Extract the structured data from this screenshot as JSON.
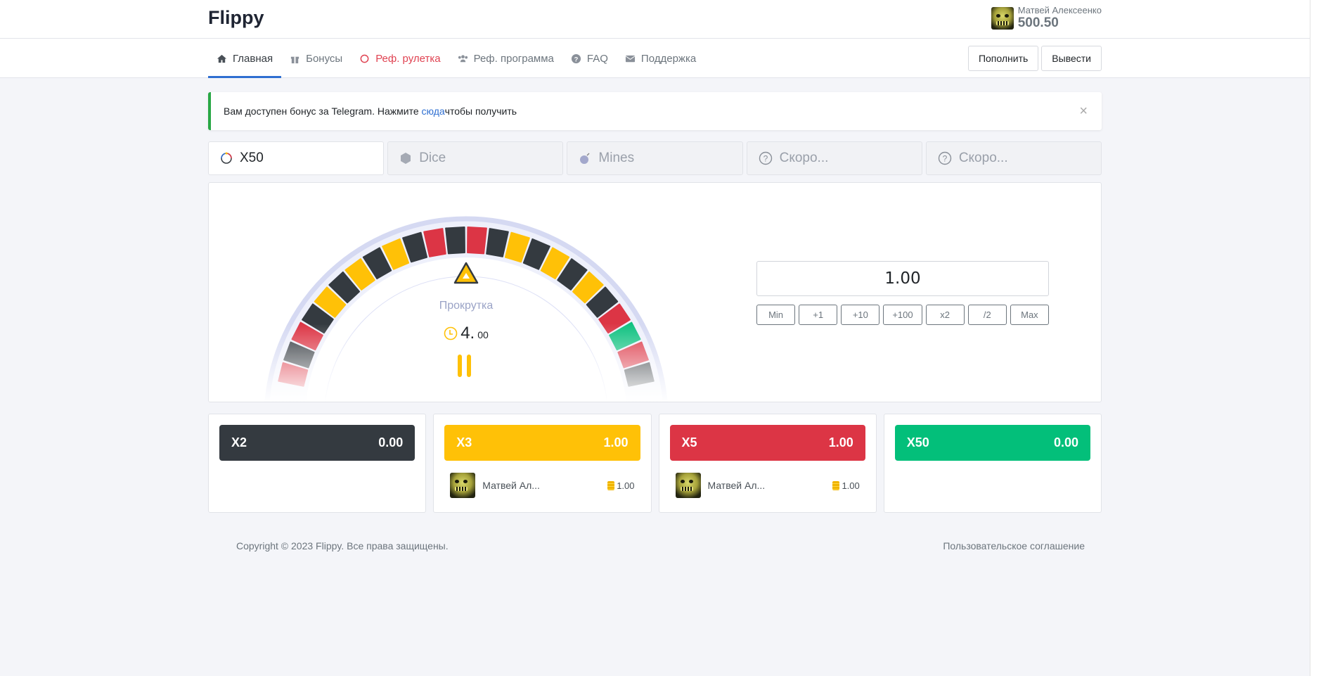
{
  "header": {
    "logo": "Flippy",
    "user_name": "Матвей Алексеенко",
    "balance": "500.50"
  },
  "nav": {
    "items": [
      {
        "label": "Главная",
        "icon": "home-icon"
      },
      {
        "label": "Бонусы",
        "icon": "gift-icon"
      },
      {
        "label": "Реф. рулетка",
        "icon": "ring-icon"
      },
      {
        "label": "Реф. программа",
        "icon": "users-icon"
      },
      {
        "label": "FAQ",
        "icon": "question-icon"
      },
      {
        "label": "Поддержка",
        "icon": "envelope-icon"
      }
    ],
    "deposit": "Пополнить",
    "withdraw": "Вывести"
  },
  "alert": {
    "before": "Вам доступен бонус за Telegram. Нажмите ",
    "link": "сюда",
    "after": " чтобы получить",
    "close": "×"
  },
  "tabs": [
    {
      "label": "X50"
    },
    {
      "label": "Dice"
    },
    {
      "label": "Mines"
    },
    {
      "label": "Скоро..."
    },
    {
      "label": "Скоро..."
    }
  ],
  "game": {
    "status": "Прокрутка",
    "timer_main": "4.",
    "timer_fraction": "00",
    "bet_value": "1.00",
    "bet_buttons": [
      "Min",
      "+1",
      "+10",
      "+100",
      "x2",
      "/2",
      "Max"
    ],
    "wheel_left": [
      "black",
      "red",
      "black",
      "yellow",
      "black",
      "yellow",
      "black",
      "yellow",
      "black",
      "red",
      "black",
      "red"
    ],
    "wheel_right": [
      "red",
      "black",
      "yellow",
      "black",
      "yellow",
      "black",
      "yellow",
      "black",
      "red",
      "green",
      "red",
      "black"
    ],
    "colors": {
      "black": "#343a40",
      "red": "#dc3545",
      "yellow": "#ffc107",
      "green": "#10c180"
    }
  },
  "bets": [
    {
      "label": "X2",
      "total": "0.00",
      "color": "#343a40",
      "players": []
    },
    {
      "label": "X3",
      "total": "1.00",
      "color": "#ffc107",
      "players": [
        {
          "name": "Матвей Ал...",
          "amount": "1.00"
        }
      ]
    },
    {
      "label": "X5",
      "total": "1.00",
      "color": "#dc3545",
      "players": [
        {
          "name": "Матвей Ал...",
          "amount": "1.00"
        }
      ]
    },
    {
      "label": "X50",
      "total": "0.00",
      "color": "#03bf7a",
      "players": []
    }
  ],
  "footer": {
    "copyright": "Copyright © 2023 Flippy. Все права защищены.",
    "terms": "Пользовательское соглашение"
  }
}
